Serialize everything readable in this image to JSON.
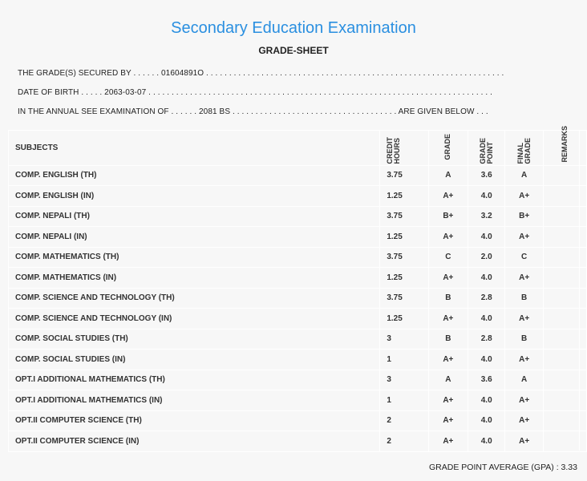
{
  "header": {
    "title": "Secondary Education Examination",
    "subtitle": "GRADE-SHEET"
  },
  "info": {
    "secured_by": "THE GRADE(S) SECURED BY . . . . . . 01604891O . . . . . . . . . . . . . . . . . . . . . . . . . . . . . . . . . . . . . . . . . . . . . . . . . . . . . . . . . . . . . . . . .",
    "dob": "DATE OF BIRTH . . . . . 2063-03-07 . . . . . . . . . . . . . . . . . . . . . . . . . . . . . . . . . . . . . . . . . . . . . . . . . . . . . . . . . . . . . . . . . . . . . . . . . . .",
    "exam": "IN THE ANNUAL SEE EXAMINATION OF . . . . . . 2081 BS . . . . . . . . . . . . . . . . . . . . . . . . . . . . . . . . . . . . ARE GIVEN BELOW . . ."
  },
  "table": {
    "headers": {
      "subjects": "SUBJECTS",
      "credit_hours": "CREDIT HOURS",
      "grade": "GRADE",
      "grade_point": "GRADE POINT",
      "final_grade": "FINAL GRADE",
      "remarks": "REMARKS"
    },
    "rows": [
      {
        "subject": "COMP. ENGLISH (TH)",
        "credit": "3.75",
        "grade": "A",
        "point": "3.6",
        "final": "A"
      },
      {
        "subject": "COMP. ENGLISH (IN)",
        "credit": "1.25",
        "grade": "A+",
        "point": "4.0",
        "final": "A+"
      },
      {
        "subject": "COMP. NEPALI (TH)",
        "credit": "3.75",
        "grade": "B+",
        "point": "3.2",
        "final": "B+"
      },
      {
        "subject": "COMP. NEPALI (IN)",
        "credit": "1.25",
        "grade": "A+",
        "point": "4.0",
        "final": "A+"
      },
      {
        "subject": "COMP. MATHEMATICS (TH)",
        "credit": "3.75",
        "grade": "C",
        "point": "2.0",
        "final": "C"
      },
      {
        "subject": "COMP. MATHEMATICS (IN)",
        "credit": "1.25",
        "grade": "A+",
        "point": "4.0",
        "final": "A+"
      },
      {
        "subject": "COMP. SCIENCE AND TECHNOLOGY (TH)",
        "credit": "3.75",
        "grade": "B",
        "point": "2.8",
        "final": "B"
      },
      {
        "subject": "COMP. SCIENCE AND TECHNOLOGY (IN)",
        "credit": "1.25",
        "grade": "A+",
        "point": "4.0",
        "final": "A+"
      },
      {
        "subject": "COMP. SOCIAL STUDIES (TH)",
        "credit": "3",
        "grade": "B",
        "point": "2.8",
        "final": "B"
      },
      {
        "subject": "COMP. SOCIAL STUDIES (IN)",
        "credit": "1",
        "grade": "A+",
        "point": "4.0",
        "final": "A+"
      },
      {
        "subject": "OPT.I ADDITIONAL MATHEMATICS (TH)",
        "credit": "3",
        "grade": "A",
        "point": "3.6",
        "final": "A"
      },
      {
        "subject": "OPT.I ADDITIONAL MATHEMATICS (IN)",
        "credit": "1",
        "grade": "A+",
        "point": "4.0",
        "final": "A+"
      },
      {
        "subject": "OPT.II COMPUTER SCIENCE (TH)",
        "credit": "2",
        "grade": "A+",
        "point": "4.0",
        "final": "A+"
      },
      {
        "subject": "OPT.II COMPUTER SCIENCE (IN)",
        "credit": "2",
        "grade": "A+",
        "point": "4.0",
        "final": "A+"
      }
    ]
  },
  "gpa": "GRADE POINT AVERAGE (GPA) : 3.33",
  "colors": {
    "title": "#2a8fe0",
    "background": "#f7f7f7",
    "grid": "#ffffff"
  }
}
